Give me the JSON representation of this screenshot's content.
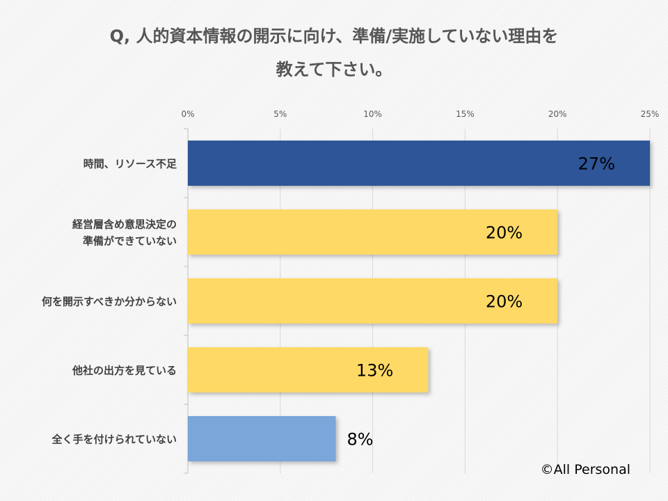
{
  "chart_data": {
    "type": "bar",
    "orientation": "horizontal",
    "title_lines": [
      "Q, 人的資本情報の開示に向け、準備/実施していない理由を",
      "教えて下さい。"
    ],
    "categories": [
      [
        "時間、リソース不足"
      ],
      [
        "経営層含め意思決定の",
        "準備ができていない"
      ],
      [
        "何を開示すべきか分からない"
      ],
      [
        "他社の出方を見ている"
      ],
      [
        "全く手を付けられていない"
      ]
    ],
    "values": [
      27,
      20,
      20,
      13,
      8
    ],
    "value_labels": [
      "27%",
      "20%",
      "20%",
      "13%",
      "8%"
    ],
    "bar_colors": [
      "#2f5597",
      "#ffd966",
      "#ffd966",
      "#ffd966",
      "#7aa6d9"
    ],
    "xlim": [
      0,
      25
    ],
    "xticks": [
      0,
      5,
      10,
      15,
      20,
      25
    ],
    "xtick_labels": [
      "0%",
      "5%",
      "10%",
      "15%",
      "20%",
      "25%"
    ],
    "axis_position": "top",
    "grid": true
  },
  "copyright": "©All Personal"
}
